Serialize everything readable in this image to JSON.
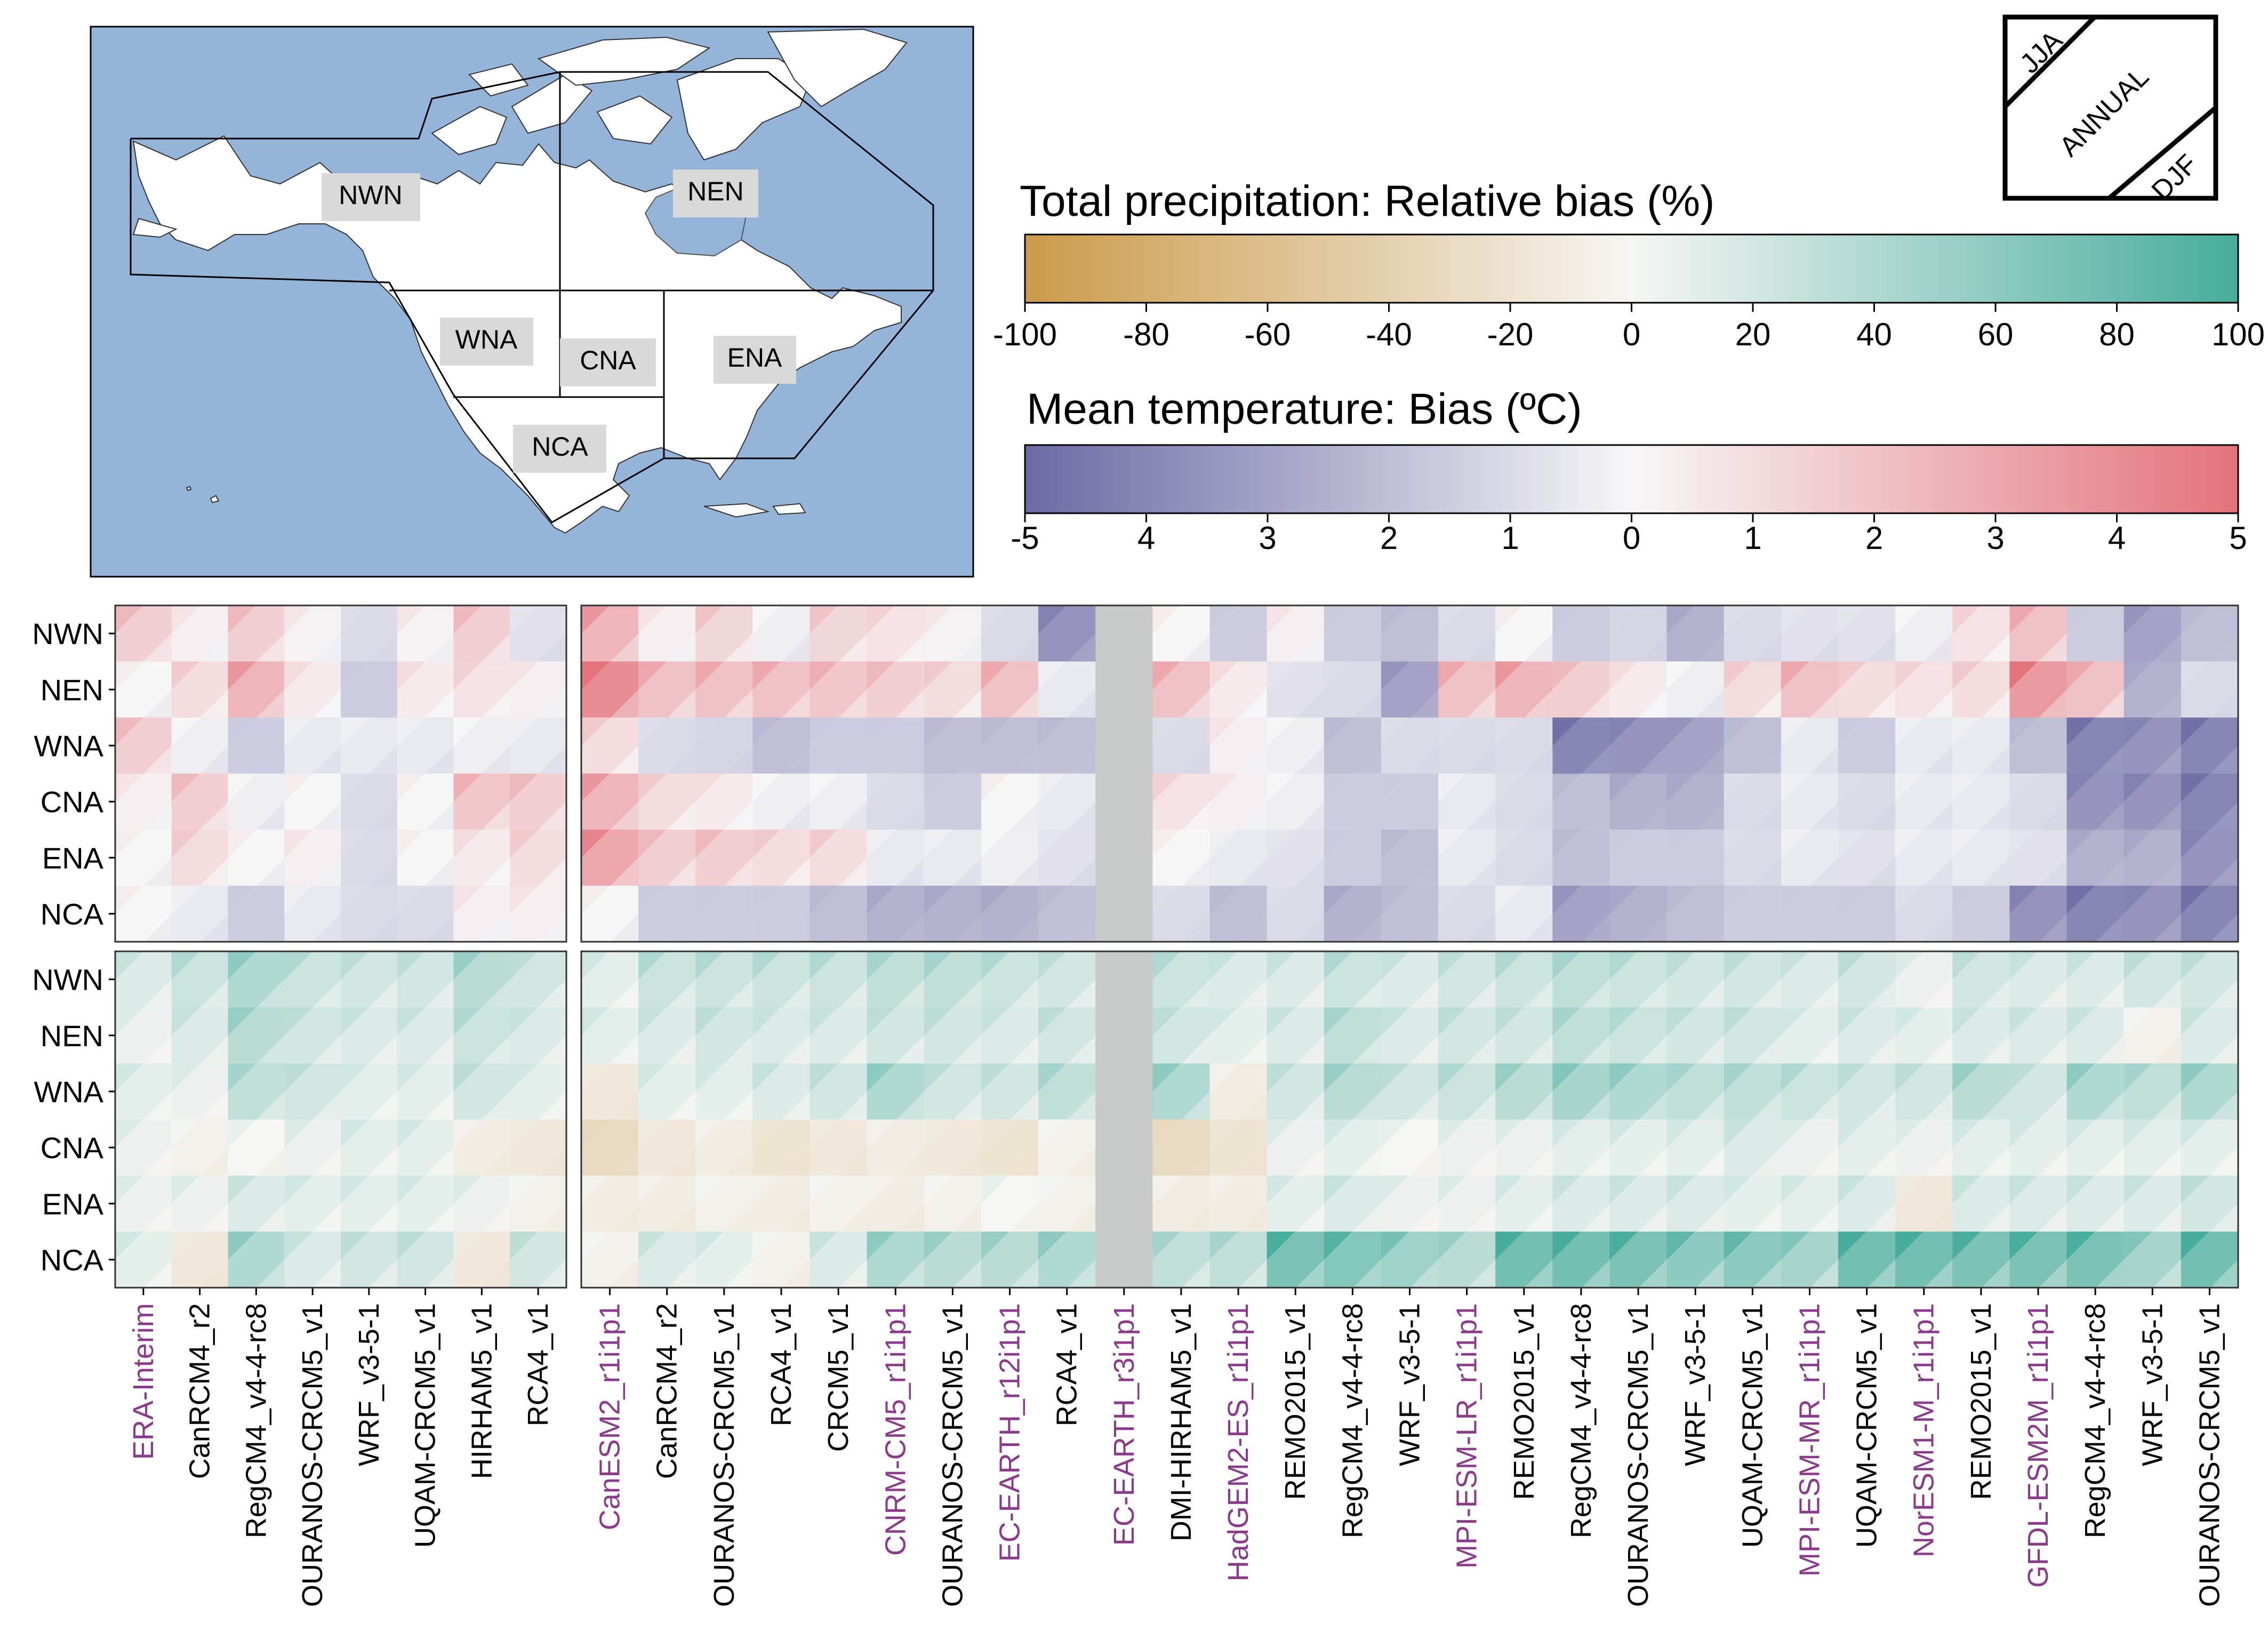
{
  "map": {
    "regions": [
      "NWN",
      "NEN",
      "WNA",
      "CNA",
      "ENA",
      "NCA"
    ],
    "ocean_color": "#95b4d9",
    "land_color": "#ffffff",
    "label_box_color": "#d9d9d9"
  },
  "legend_key": {
    "top": "JJA",
    "middle": "ANNUAL",
    "bottom": "DJF"
  },
  "colorbars": {
    "precip": {
      "title": "Total precipitation: Relative bias (%)",
      "ticks": [
        "-100",
        "-80",
        "-60",
        "-40",
        "-20",
        "0",
        "20",
        "40",
        "60",
        "80",
        "100"
      ],
      "colors": [
        "#cc9b4a",
        "#f6f6f4",
        "#47ad9c"
      ]
    },
    "temp": {
      "title": "Mean temperature: Bias (ºC)",
      "ticks": [
        "-5",
        "4",
        "3",
        "2",
        "1",
        "0",
        "1",
        "2",
        "3",
        "4",
        "5"
      ],
      "colors": [
        "#6c6aa4",
        "#f7f7f8",
        "#e4737b"
      ]
    }
  },
  "chart_data": {
    "type": "heatmap",
    "rows": [
      "NWN",
      "NEN",
      "WNA",
      "CNA",
      "ENA",
      "NCA"
    ],
    "columns": [
      {
        "label": "ERA-Interim",
        "driver": true
      },
      {
        "label": "CanRCM4_r2",
        "driver": false
      },
      {
        "label": "RegCM4_v4-4-rc8",
        "driver": false
      },
      {
        "label": "OURANOS-CRCM5_v1",
        "driver": false
      },
      {
        "label": "WRF_v3-5-1",
        "driver": false
      },
      {
        "label": "UQAM-CRCM5_v1",
        "driver": false
      },
      {
        "label": "HIRHAM5_v1",
        "driver": false
      },
      {
        "label": "RCA4_v1",
        "driver": false
      },
      {
        "label": "CanESM2_r1i1p1",
        "driver": true
      },
      {
        "label": "CanRCM4_r2",
        "driver": false
      },
      {
        "label": "OURANOS-CRCM5_v1",
        "driver": false
      },
      {
        "label": "RCA4_v1",
        "driver": false
      },
      {
        "label": "CRCM5_v1",
        "driver": false
      },
      {
        "label": "CNRM-CM5_r1i1p1",
        "driver": true
      },
      {
        "label": "OURANOS-CRCM5_v1",
        "driver": false
      },
      {
        "label": "EC-EARTH_r12i1p1",
        "driver": true
      },
      {
        "label": "RCA4_v1",
        "driver": false
      },
      {
        "label": "EC-EARTH_r3i1p1",
        "driver": true
      },
      {
        "label": "DMI-HIRHAM5_v1",
        "driver": false
      },
      {
        "label": "HadGEM2-ES_r1i1p1",
        "driver": true
      },
      {
        "label": "REMO2015_v1",
        "driver": false
      },
      {
        "label": "RegCM4_v4-4-rc8",
        "driver": false
      },
      {
        "label": "WRF_v3-5-1",
        "driver": false
      },
      {
        "label": "MPI-ESM-LR_r1i1p1",
        "driver": true
      },
      {
        "label": "REMO2015_v1",
        "driver": false
      },
      {
        "label": "RegCM4_v4-4-rc8",
        "driver": false
      },
      {
        "label": "OURANOS-CRCM5_v1",
        "driver": false
      },
      {
        "label": "WRF_v3-5-1",
        "driver": false
      },
      {
        "label": "UQAM-CRCM5_v1",
        "driver": false
      },
      {
        "label": "MPI-ESM-MR_r1i1p1",
        "driver": true
      },
      {
        "label": "UQAM-CRCM5_v1",
        "driver": false
      },
      {
        "label": "NorESM1-M_r1i1p1",
        "driver": true
      },
      {
        "label": "REMO2015_v1",
        "driver": false
      },
      {
        "label": "GFDL-ESM2M_r1i1p1",
        "driver": true
      },
      {
        "label": "RegCM4_v4-4-rc8",
        "driver": false
      },
      {
        "label": "WRF_v3-5-1",
        "driver": false
      },
      {
        "label": "OURANOS-CRCM5_v1",
        "driver": false
      }
    ],
    "missing_column": 17,
    "driver_color": "#8b3a8b",
    "missing_color": "#c6cbc9",
    "temperature_bias": [
      [
        1.5,
        0.3,
        1.5,
        0.2,
        -1.0,
        0.2,
        1.5,
        -0.8,
        2.5,
        0.3,
        1.2,
        -0.3,
        1.2,
        0.8,
        0.2,
        -1.0,
        -3.5,
        null,
        0.0,
        -1.5,
        0.3,
        -1.5,
        -2.0,
        -1.0,
        0.0,
        -1.5,
        -1.2,
        -2.5,
        -1.0,
        -0.8,
        -0.8,
        -0.3,
        0.8,
        2.0,
        -1.5,
        -3.0,
        -2.0
      ],
      [
        0.0,
        1.0,
        2.5,
        0.5,
        -1.5,
        0.5,
        0.8,
        0.3,
        4.0,
        2.0,
        2.0,
        2.0,
        1.8,
        1.5,
        1.0,
        2.0,
        -0.5,
        null,
        2.0,
        0.5,
        -0.8,
        -1.0,
        -3.0,
        2.0,
        2.5,
        1.5,
        0.5,
        -0.3,
        1.0,
        2.0,
        1.0,
        0.8,
        1.0,
        3.5,
        2.0,
        -2.5,
        -1.0
      ],
      [
        1.5,
        -0.3,
        -1.5,
        -0.5,
        -0.5,
        -0.5,
        -0.3,
        -0.5,
        1.0,
        -1.0,
        -1.2,
        -2.0,
        -1.5,
        -1.5,
        -2.0,
        -2.0,
        -2.0,
        null,
        -1.0,
        0.3,
        -0.3,
        -2.0,
        -1.0,
        -1.0,
        -1.0,
        -4.0,
        -3.5,
        -3.0,
        -2.0,
        -0.5,
        -1.5,
        -0.5,
        -0.5,
        -2.0,
        -4.0,
        -3.5,
        -4.0
      ],
      [
        0.3,
        1.5,
        -0.3,
        0.0,
        -1.0,
        0.0,
        1.8,
        1.5,
        2.5,
        1.0,
        0.5,
        -0.3,
        -0.3,
        -1.0,
        -1.5,
        0.0,
        -0.5,
        null,
        0.8,
        0.3,
        -0.3,
        -1.5,
        -1.5,
        -0.5,
        -1.0,
        -2.0,
        -2.5,
        -2.5,
        -1.0,
        -0.5,
        -1.0,
        -0.5,
        -0.5,
        -1.0,
        -3.5,
        -3.5,
        -4.0
      ],
      [
        0.0,
        1.0,
        0.0,
        0.3,
        -1.0,
        0.0,
        0.5,
        1.0,
        3.0,
        1.5,
        1.5,
        1.0,
        1.0,
        -0.5,
        -0.5,
        -0.3,
        -0.8,
        null,
        0.0,
        -0.5,
        -0.8,
        -1.5,
        -2.0,
        -0.5,
        -1.0,
        -2.0,
        -1.5,
        -1.5,
        -1.0,
        -0.5,
        -0.8,
        -0.5,
        -0.5,
        -0.8,
        -2.5,
        -2.5,
        -3.5
      ],
      [
        0.0,
        -0.5,
        -1.5,
        -0.5,
        -1.0,
        -1.0,
        0.3,
        0.3,
        0.0,
        -1.5,
        -1.5,
        -1.5,
        -2.0,
        -2.5,
        -2.5,
        -2.5,
        -2.0,
        null,
        -1.0,
        -2.0,
        -1.0,
        -2.5,
        -2.0,
        -1.0,
        -0.5,
        -3.0,
        -2.5,
        -2.0,
        -1.5,
        -1.5,
        -1.5,
        -1.0,
        -1.5,
        -3.5,
        -4.0,
        -3.5,
        -4.0
      ]
    ],
    "precipitation_bias": [
      [
        15,
        25,
        40,
        25,
        20,
        20,
        35,
        20,
        10,
        25,
        25,
        25,
        25,
        30,
        30,
        25,
        20,
        null,
        25,
        15,
        15,
        25,
        15,
        20,
        25,
        30,
        25,
        20,
        20,
        15,
        20,
        5,
        20,
        15,
        15,
        20,
        20
      ],
      [
        5,
        15,
        35,
        20,
        15,
        15,
        25,
        15,
        10,
        15,
        20,
        15,
        15,
        20,
        20,
        15,
        20,
        null,
        20,
        10,
        15,
        30,
        15,
        20,
        20,
        30,
        25,
        20,
        20,
        10,
        15,
        10,
        15,
        15,
        15,
        -5,
        15
      ],
      [
        10,
        5,
        30,
        20,
        10,
        10,
        20,
        10,
        -15,
        10,
        10,
        15,
        20,
        40,
        20,
        20,
        30,
        null,
        40,
        -10,
        20,
        35,
        20,
        25,
        35,
        45,
        40,
        30,
        30,
        25,
        20,
        20,
        35,
        20,
        40,
        30,
        40
      ],
      [
        5,
        -5,
        0,
        5,
        10,
        10,
        -10,
        -15,
        -30,
        -15,
        -10,
        -20,
        -15,
        -10,
        -15,
        -20,
        -5,
        null,
        -30,
        -20,
        5,
        10,
        0,
        5,
        5,
        10,
        10,
        10,
        15,
        5,
        10,
        5,
        10,
        10,
        10,
        10,
        10
      ],
      [
        5,
        5,
        15,
        10,
        10,
        10,
        5,
        -5,
        -10,
        -10,
        -5,
        -10,
        -5,
        -10,
        -5,
        0,
        -5,
        null,
        -10,
        -10,
        10,
        15,
        5,
        5,
        10,
        15,
        15,
        15,
        10,
        10,
        15,
        -15,
        15,
        15,
        15,
        15,
        20
      ],
      [
        10,
        -15,
        40,
        15,
        20,
        20,
        -15,
        20,
        -5,
        15,
        10,
        -5,
        15,
        40,
        35,
        35,
        40,
        null,
        30,
        30,
        70,
        65,
        50,
        35,
        75,
        75,
        70,
        60,
        60,
        45,
        75,
        75,
        70,
        70,
        70,
        45,
        75
      ]
    ]
  }
}
